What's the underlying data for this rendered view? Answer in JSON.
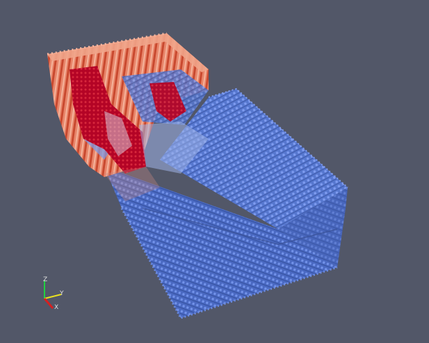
{
  "viewport": {
    "background": "#525768"
  },
  "glyph_colors": {
    "low": "#4f74d6",
    "mid_low": "#8aa4e8",
    "mid": "#dcdcdc",
    "mid_high": "#f2a486",
    "high": "#b40426"
  },
  "orientation_axes": {
    "x_label": "X",
    "y_label": "Y",
    "z_label": "Z",
    "x_color": "#d62020",
    "y_color": "#e8e020",
    "z_color": "#20d040"
  }
}
